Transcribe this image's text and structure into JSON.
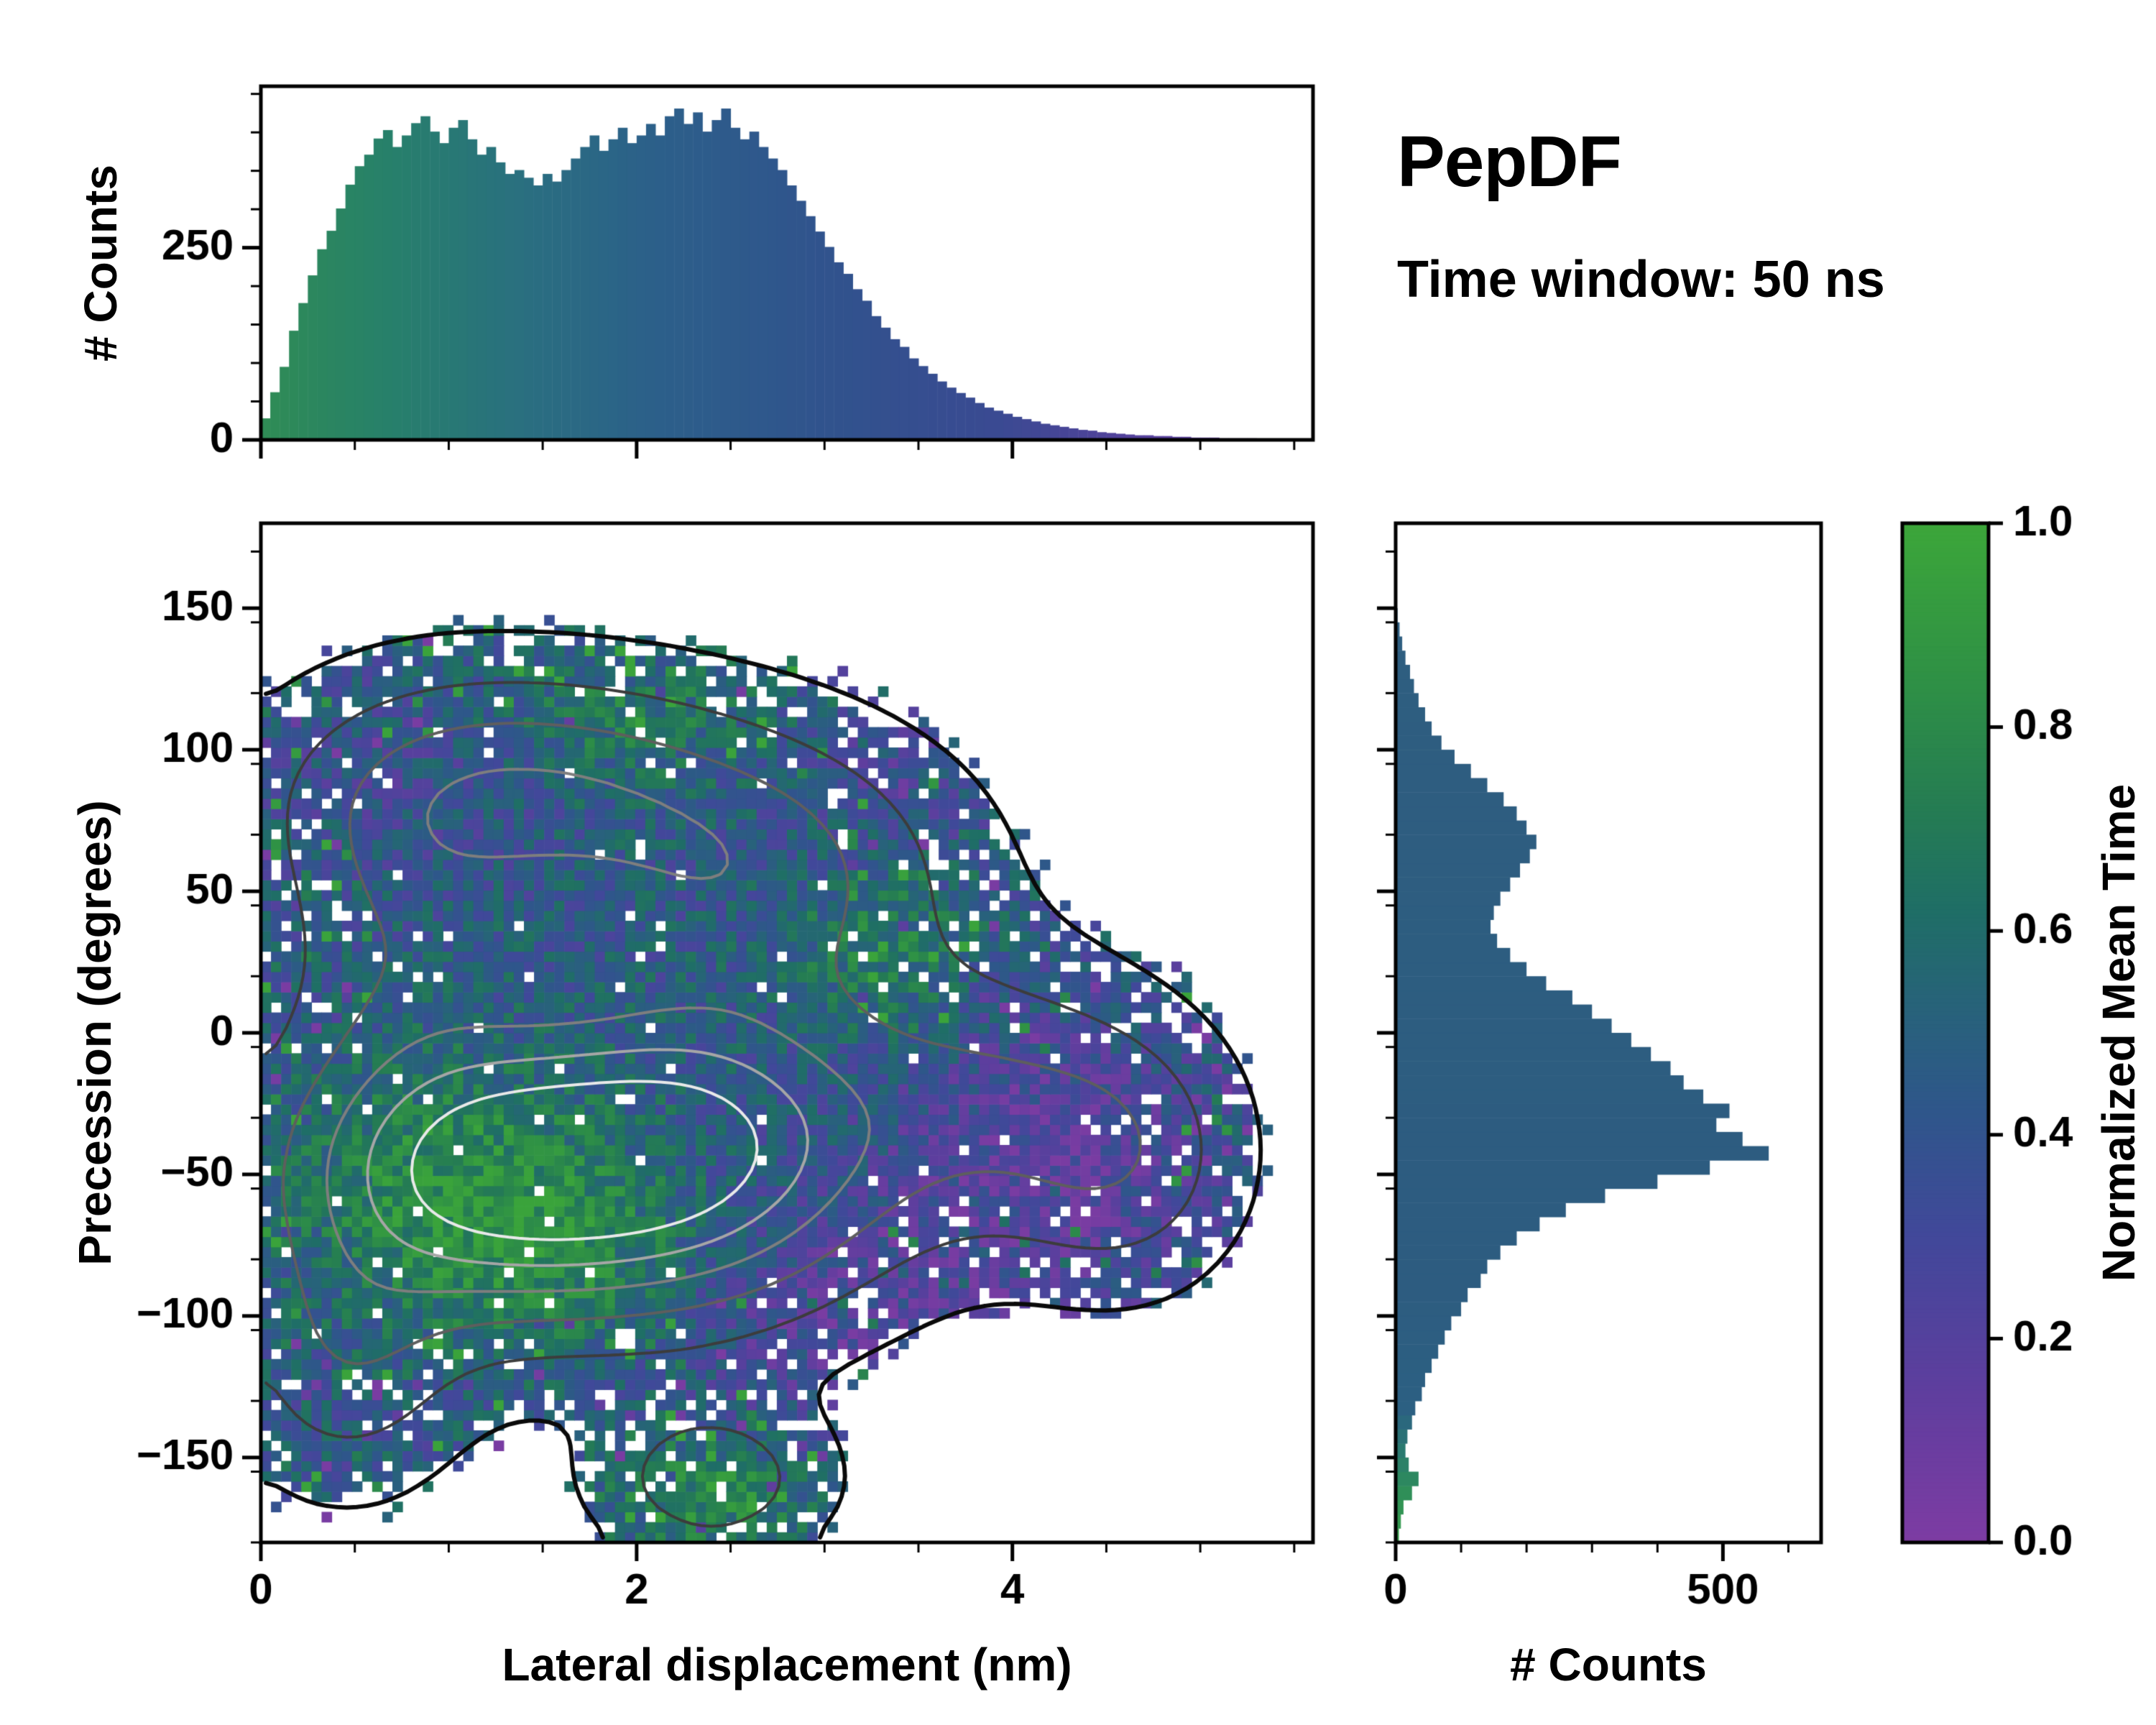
{
  "header": {
    "title": "PepDF",
    "subtitle": "Time window: 50 ns"
  },
  "colors": {
    "spine": "#000000",
    "accent_green": "#3ca63a",
    "accent_purple": "#7d3ca3",
    "histogram_blue": "#2d5c80"
  },
  "chart_data": [
    {
      "id": "top_histogram",
      "type": "bar",
      "orientation": "vertical",
      "ylabel": "# Counts",
      "xlim": [
        0,
        5.6
      ],
      "ylim": [
        0,
        460
      ],
      "bin_start": 0.025,
      "bin_step": 0.05,
      "values": [
        28,
        62,
        95,
        142,
        178,
        214,
        248,
        272,
        301,
        332,
        356,
        371,
        392,
        403,
        381,
        396,
        412,
        421,
        401,
        386,
        406,
        416,
        391,
        371,
        381,
        361,
        346,
        351,
        341,
        331,
        346,
        336,
        351,
        366,
        381,
        396,
        376,
        391,
        406,
        386,
        396,
        411,
        396,
        421,
        431,
        411,
        426,
        401,
        416,
        431,
        406,
        391,
        401,
        381,
        366,
        351,
        331,
        311,
        291,
        271,
        251,
        231,
        216,
        196,
        181,
        161,
        146,
        131,
        121,
        106,
        96,
        86,
        76,
        68,
        61,
        55,
        48,
        42,
        38,
        34,
        30,
        27,
        24,
        21,
        19,
        17,
        15,
        13,
        12,
        10,
        9,
        8,
        7,
        6,
        6,
        5,
        5,
        4,
        4,
        3,
        3,
        3,
        2,
        2,
        2,
        2,
        1,
        1,
        1,
        1
      ],
      "yticks": [
        {
          "v": 0,
          "l": "0"
        },
        {
          "v": 250,
          "l": "250"
        }
      ],
      "y_minor_step": 50,
      "x_minor_step": 0.5,
      "gradient_stops": [
        [
          0,
          "#2f8c55"
        ],
        [
          0.12,
          "#27806a"
        ],
        [
          0.25,
          "#2a6f80"
        ],
        [
          0.38,
          "#2c5f8a"
        ],
        [
          0.55,
          "#31528d"
        ],
        [
          0.7,
          "#3a4a92"
        ],
        [
          0.82,
          "#52419b"
        ],
        [
          1,
          "#6f3fa2"
        ]
      ]
    },
    {
      "id": "main_heatmap",
      "type": "heatmap",
      "xlabel": "Lateral displacement (nm)",
      "ylabel": "Precession (degrees)",
      "xlim": [
        0,
        5.6
      ],
      "ylim": [
        -180,
        180
      ],
      "xticks": [
        {
          "v": 0,
          "l": "0"
        },
        {
          "v": 2,
          "l": "2"
        },
        {
          "v": 4,
          "l": "4"
        }
      ],
      "x_minor_step": 0.5,
      "yticks": [
        {
          "v": -150,
          "l": "−150"
        },
        {
          "v": -100,
          "l": "−100"
        },
        {
          "v": -50,
          "l": "−50"
        },
        {
          "v": 0,
          "l": "0"
        },
        {
          "v": 50,
          "l": "50"
        },
        {
          "v": 100,
          "l": "100"
        },
        {
          "v": 150,
          "l": "150"
        }
      ],
      "y_minor_step": 25,
      "grid_nx": 104,
      "grid_ny": 100,
      "seed": 20,
      "occupancy_threshold": 0.05,
      "hole_prob_edge": 0.16,
      "noise_amplitude": 0.22,
      "green_sprinkle_prob": 0.06,
      "purple_sprinkle_prob": 0.05,
      "density_components": [
        [
          1.0,
          1.2,
          -50,
          1.05,
          48
        ],
        [
          0.85,
          2.4,
          -40,
          0.95,
          52
        ],
        [
          0.5,
          1.4,
          85,
          1.1,
          38
        ],
        [
          0.45,
          2.6,
          55,
          1.0,
          45
        ],
        [
          0.35,
          3.9,
          -25,
          0.8,
          45
        ],
        [
          0.32,
          2.4,
          -158,
          0.55,
          24
        ],
        [
          0.3,
          0.45,
          -115,
          0.55,
          42
        ],
        [
          0.28,
          4.6,
          -45,
          0.55,
          40
        ],
        [
          0.3,
          0.8,
          35,
          0.7,
          60
        ]
      ],
      "mean_time_base": 0.45,
      "mean_time_components": [
        [
          0.38,
          1.05,
          -55,
          0.85,
          45
        ],
        [
          0.22,
          1.7,
          -80,
          0.7,
          35
        ],
        [
          -0.3,
          4.2,
          -50,
          0.9,
          55
        ],
        [
          -0.22,
          3.0,
          -105,
          0.8,
          40
        ],
        [
          0.34,
          2.4,
          -163,
          0.6,
          20
        ],
        [
          0.26,
          3.3,
          30,
          0.5,
          30
        ],
        [
          0.22,
          1.9,
          112,
          0.9,
          26
        ],
        [
          -0.14,
          3.4,
          95,
          0.7,
          30
        ],
        [
          -0.12,
          0.8,
          95,
          0.8,
          35
        ]
      ],
      "contour_levels": [
        0.05,
        0.16,
        0.3,
        0.45,
        0.6,
        0.75
      ],
      "contour_colors": [
        "#0a0a0a",
        "#3c3c3c",
        "#5e5e5e",
        "#7e7e7e",
        "#a6a6a6",
        "#e9e9e9"
      ],
      "contour_widths": [
        6,
        4,
        4,
        4,
        4,
        4
      ],
      "colormap_stops": [
        [
          0,
          "#7d3ca3"
        ],
        [
          0.15,
          "#5e3e9e"
        ],
        [
          0.3,
          "#41489a"
        ],
        [
          0.42,
          "#2f568b"
        ],
        [
          0.52,
          "#28627b"
        ],
        [
          0.62,
          "#1f6e66"
        ],
        [
          0.72,
          "#257c53"
        ],
        [
          0.85,
          "#2f9145"
        ],
        [
          1,
          "#3ca63a"
        ]
      ]
    },
    {
      "id": "right_histogram",
      "type": "bar",
      "orientation": "horizontal",
      "xlabel": "# Counts",
      "xlim": [
        0,
        650
      ],
      "ylim": [
        -180,
        180
      ],
      "bin_start": -177.5,
      "bin_step": 5,
      "values": [
        5,
        8,
        12,
        25,
        35,
        20,
        15,
        18,
        25,
        30,
        40,
        45,
        55,
        65,
        75,
        85,
        100,
        110,
        130,
        140,
        160,
        185,
        220,
        260,
        320,
        400,
        480,
        570,
        530,
        490,
        510,
        470,
        440,
        420,
        390,
        360,
        330,
        300,
        270,
        230,
        200,
        175,
        155,
        145,
        150,
        160,
        175,
        190,
        205,
        215,
        200,
        185,
        165,
        140,
        115,
        90,
        70,
        55,
        45,
        35,
        28,
        22,
        15,
        10,
        6,
        3
      ],
      "xticks": [
        {
          "v": 0,
          "l": "0"
        },
        {
          "v": 500,
          "l": "500"
        }
      ],
      "x_minor_step": 100,
      "y_minor_step": 25,
      "gradient_stops": [
        [
          0,
          "#3aa04a"
        ],
        [
          0.05,
          "#2f8f58"
        ],
        [
          0.09,
          "#2a7a70"
        ],
        [
          0.13,
          "#2c6082"
        ],
        [
          0.25,
          "#2d5c80"
        ],
        [
          1,
          "#2e5e80"
        ]
      ]
    },
    {
      "id": "colorbar",
      "type": "colorbar",
      "label": "Normalized Mean Time",
      "lim": [
        0,
        1
      ],
      "ticks": [
        {
          "v": 0,
          "l": "0.0"
        },
        {
          "v": 0.2,
          "l": "0.2"
        },
        {
          "v": 0.4,
          "l": "0.4"
        },
        {
          "v": 0.6,
          "l": "0.6"
        },
        {
          "v": 0.8,
          "l": "0.8"
        },
        {
          "v": 1,
          "l": "1.0"
        }
      ]
    }
  ]
}
